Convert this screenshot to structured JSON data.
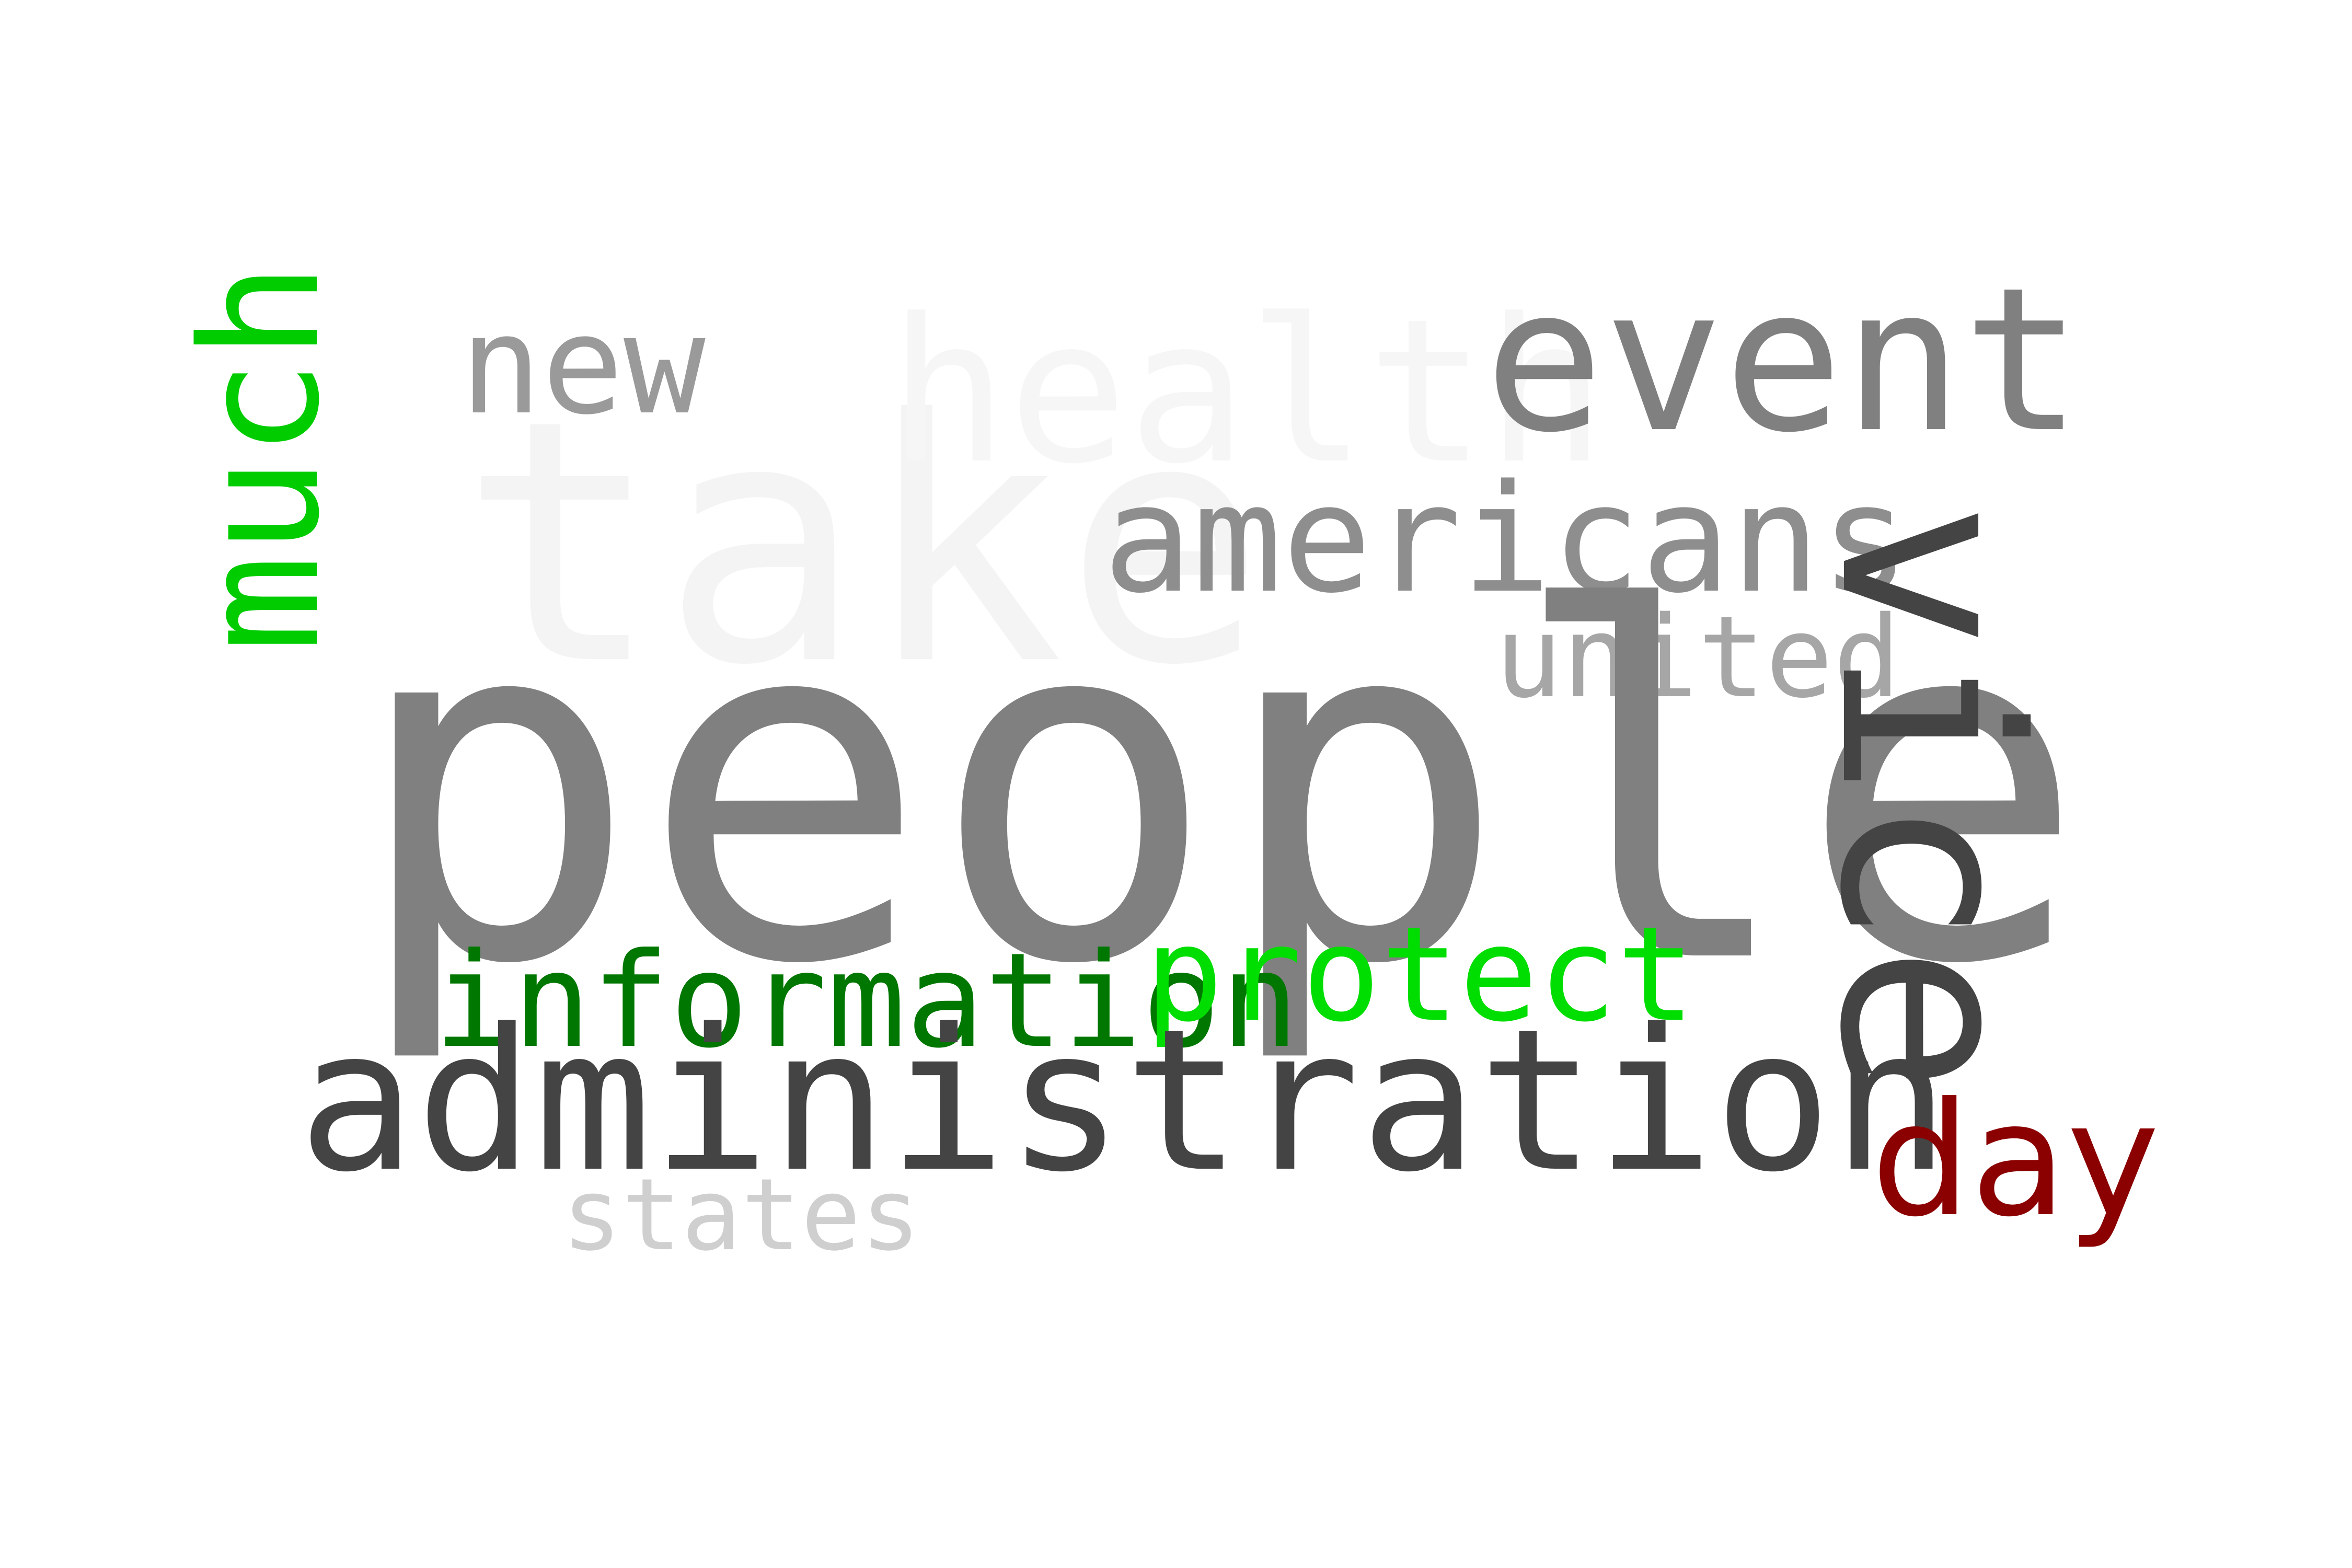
{
  "words": {
    "people": {
      "text": "people",
      "color": "#808080"
    },
    "administration": {
      "text": "administration",
      "color": "#444444"
    },
    "take": {
      "text": "take",
      "color": "#f4f4f4"
    },
    "health": {
      "text": "health",
      "color": "#f6f6f6"
    },
    "event": {
      "text": "event",
      "color": "#808080"
    },
    "vice": {
      "text": "vice",
      "color": "#444444",
      "orientation": "vertical"
    },
    "americans": {
      "text": "americans",
      "color": "#8e8e8e"
    },
    "much": {
      "text": "much",
      "color": "#00cc00",
      "orientation": "vertical"
    },
    "new": {
      "text": "new",
      "color": "#9a9a9a"
    },
    "united": {
      "text": "united",
      "color": "#a6a6a6"
    },
    "information": {
      "text": "information",
      "color": "#007700"
    },
    "protect": {
      "text": "protect",
      "color": "#00dd00"
    },
    "states": {
      "text": "states",
      "color": "#cfcfcf"
    },
    "day": {
      "text": "day",
      "color": "#8b0000"
    }
  }
}
